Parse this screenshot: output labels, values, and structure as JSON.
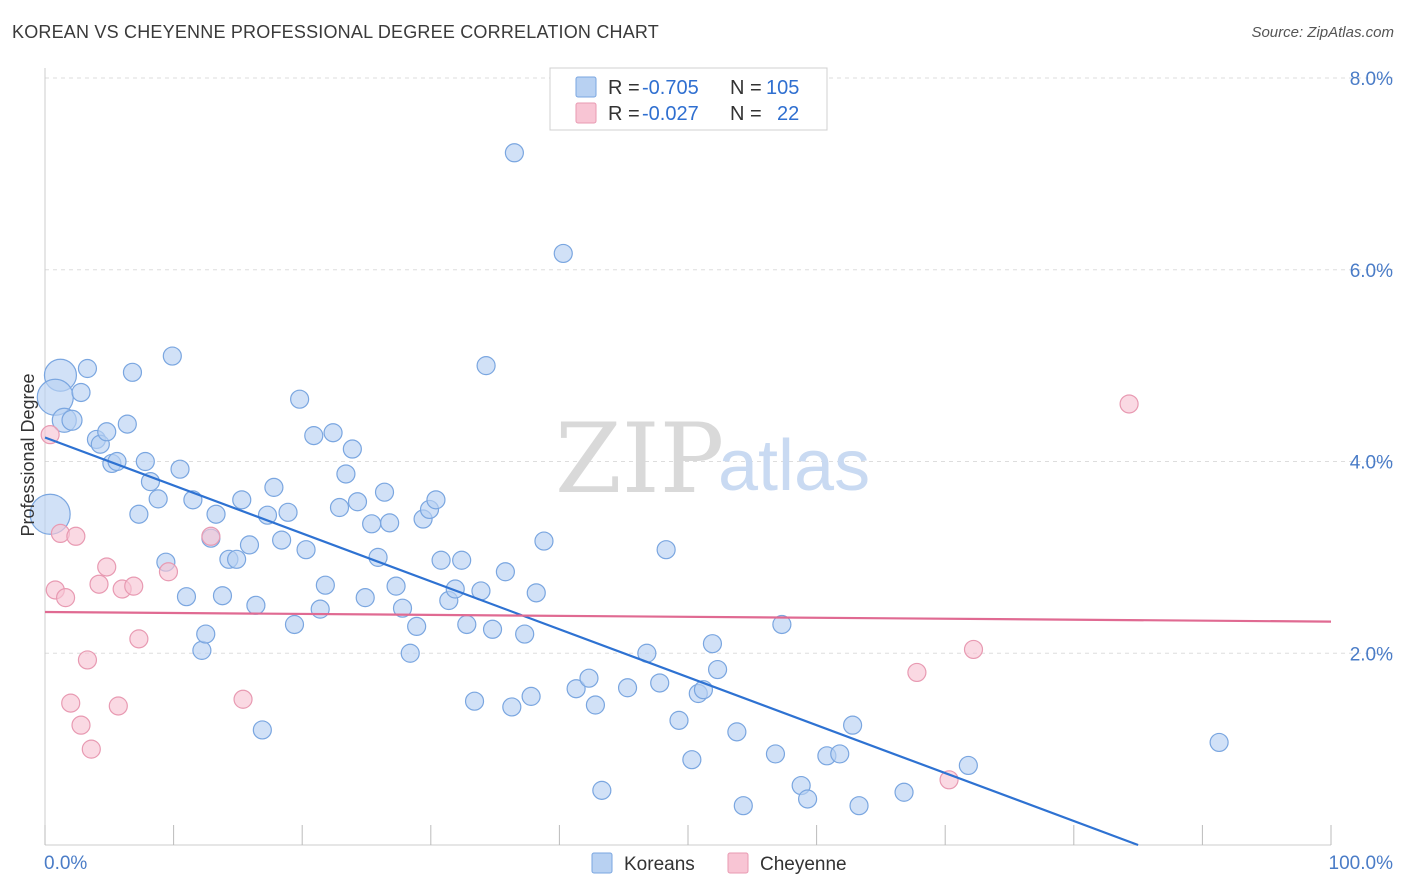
{
  "title": "KOREAN VS CHEYENNE PROFESSIONAL DEGREE CORRELATION CHART",
  "source": "Source: ZipAtlas.com",
  "watermark": {
    "zip": "ZIP",
    "atlas": "atlas"
  },
  "legend_top": [
    {
      "r_label": "R = ",
      "r_value": "-0.705",
      "n_label": "N = ",
      "n_value": "105"
    },
    {
      "r_label": "R = ",
      "r_value": "-0.027",
      "n_label": "N = ",
      "n_value": "22"
    }
  ],
  "colors": {
    "koreans_fill": "#b8d1f2",
    "koreans_stroke": "#7aa6e0",
    "koreans_line": "#2e72d2",
    "cheyenne_fill": "#f8c5d4",
    "cheyenne_stroke": "#e89ab2",
    "cheyenne_line": "#e06a92",
    "grid": "#dddddd",
    "axis_text": "#4a7cc7"
  },
  "chart_data": {
    "type": "scatter",
    "title": "KOREAN VS CHEYENNE PROFESSIONAL DEGREE CORRELATION CHART",
    "xlabel": "",
    "ylabel": "Professional Degree",
    "xlim": [
      0,
      100
    ],
    "ylim": [
      0,
      8.0
    ],
    "x_tick_labels": [
      "0.0%",
      "100.0%"
    ],
    "y_ticks": [
      2.0,
      4.0,
      6.0,
      8.0
    ],
    "y_tick_labels": [
      "2.0%",
      "4.0%",
      "6.0%",
      "8.0%"
    ],
    "grid": true,
    "legend": "top-center",
    "series": [
      {
        "name": "Koreans",
        "r": -0.705,
        "n": 105,
        "trend": {
          "x": [
            0,
            85
          ],
          "y": [
            4.25,
            0.0
          ]
        },
        "points": [
          [
            1.2,
            4.9,
            16
          ],
          [
            0.8,
            4.67,
            18
          ],
          [
            0.4,
            3.45,
            20
          ],
          [
            1.5,
            4.43,
            12
          ],
          [
            2.1,
            4.43,
            10
          ],
          [
            3.3,
            4.97,
            9
          ],
          [
            2.8,
            4.72,
            9
          ],
          [
            4.0,
            4.23,
            9
          ],
          [
            4.3,
            4.18,
            9
          ],
          [
            4.8,
            4.31,
            9
          ],
          [
            5.2,
            3.98,
            9
          ],
          [
            5.6,
            4.0,
            9
          ],
          [
            6.4,
            4.39,
            9
          ],
          [
            6.8,
            4.93,
            9
          ],
          [
            7.3,
            3.45,
            9
          ],
          [
            7.8,
            4.0,
            9
          ],
          [
            8.2,
            3.79,
            9
          ],
          [
            8.8,
            3.61,
            9
          ],
          [
            9.4,
            2.95,
            9
          ],
          [
            9.9,
            5.1,
            9
          ],
          [
            10.5,
            3.92,
            9
          ],
          [
            11.0,
            2.59,
            9
          ],
          [
            11.5,
            3.6,
            9
          ],
          [
            12.2,
            2.03,
            9
          ],
          [
            12.5,
            2.2,
            9
          ],
          [
            12.9,
            3.2,
            9
          ],
          [
            13.3,
            3.45,
            9
          ],
          [
            13.8,
            2.6,
            9
          ],
          [
            14.3,
            2.98,
            9
          ],
          [
            14.9,
            2.98,
            9
          ],
          [
            15.3,
            3.6,
            9
          ],
          [
            15.9,
            3.13,
            9
          ],
          [
            16.4,
            2.5,
            9
          ],
          [
            16.9,
            1.2,
            9
          ],
          [
            17.3,
            3.44,
            9
          ],
          [
            17.8,
            3.73,
            9
          ],
          [
            18.4,
            3.18,
            9
          ],
          [
            18.9,
            3.47,
            9
          ],
          [
            19.4,
            2.3,
            9
          ],
          [
            19.8,
            4.65,
            9
          ],
          [
            20.3,
            3.08,
            9
          ],
          [
            20.9,
            4.27,
            9
          ],
          [
            21.4,
            2.46,
            9
          ],
          [
            21.8,
            2.71,
            9
          ],
          [
            22.4,
            4.3,
            9
          ],
          [
            22.9,
            3.52,
            9
          ],
          [
            23.4,
            3.87,
            9
          ],
          [
            23.9,
            4.13,
            9
          ],
          [
            24.3,
            3.58,
            9
          ],
          [
            24.9,
            2.58,
            9
          ],
          [
            25.4,
            3.35,
            9
          ],
          [
            25.9,
            3.0,
            9
          ],
          [
            26.4,
            3.68,
            9
          ],
          [
            26.8,
            3.36,
            9
          ],
          [
            27.3,
            2.7,
            9
          ],
          [
            27.8,
            2.47,
            9
          ],
          [
            28.4,
            2.0,
            9
          ],
          [
            28.9,
            2.28,
            9
          ],
          [
            29.4,
            3.4,
            9
          ],
          [
            29.9,
            3.5,
            9
          ],
          [
            30.4,
            3.6,
            9
          ],
          [
            30.8,
            2.97,
            9
          ],
          [
            31.4,
            2.55,
            9
          ],
          [
            31.9,
            2.67,
            9
          ],
          [
            32.4,
            2.97,
            9
          ],
          [
            32.8,
            2.3,
            9
          ],
          [
            33.4,
            1.5,
            9
          ],
          [
            33.9,
            2.65,
            9
          ],
          [
            34.3,
            5.0,
            9
          ],
          [
            34.8,
            2.25,
            9
          ],
          [
            35.8,
            2.85,
            9
          ],
          [
            36.3,
            1.44,
            9
          ],
          [
            36.5,
            7.22,
            9
          ],
          [
            37.3,
            2.2,
            9
          ],
          [
            37.8,
            1.55,
            9
          ],
          [
            38.2,
            2.63,
            9
          ],
          [
            38.8,
            3.17,
            9
          ],
          [
            40.3,
            6.17,
            9
          ],
          [
            41.3,
            1.63,
            9
          ],
          [
            42.3,
            1.74,
            9
          ],
          [
            42.8,
            1.46,
            9
          ],
          [
            43.3,
            0.57,
            9
          ],
          [
            45.3,
            1.64,
            9
          ],
          [
            46.8,
            2.0,
            9
          ],
          [
            47.8,
            1.69,
            9
          ],
          [
            48.3,
            3.08,
            9
          ],
          [
            49.3,
            1.3,
            9
          ],
          [
            50.3,
            0.89,
            9
          ],
          [
            50.8,
            1.58,
            9
          ],
          [
            51.2,
            1.62,
            9
          ],
          [
            51.9,
            2.1,
            9
          ],
          [
            52.3,
            1.83,
            9
          ],
          [
            53.8,
            1.18,
            9
          ],
          [
            54.3,
            0.41,
            9
          ],
          [
            56.8,
            0.95,
            9
          ],
          [
            57.3,
            2.3,
            9
          ],
          [
            58.8,
            0.62,
            9
          ],
          [
            59.3,
            0.48,
            9
          ],
          [
            60.8,
            0.93,
            9
          ],
          [
            61.8,
            0.95,
            9
          ],
          [
            62.8,
            1.25,
            9
          ],
          [
            63.3,
            0.41,
            9
          ],
          [
            66.8,
            0.55,
            9
          ],
          [
            71.8,
            0.83,
            9
          ],
          [
            91.3,
            1.07,
            9
          ]
        ]
      },
      {
        "name": "Cheyenne",
        "r": -0.027,
        "n": 22,
        "trend": {
          "x": [
            0,
            100
          ],
          "y": [
            2.43,
            2.33
          ]
        },
        "points": [
          [
            0.4,
            4.28,
            9
          ],
          [
            0.8,
            2.66,
            9
          ],
          [
            1.2,
            3.25,
            9
          ],
          [
            1.6,
            2.58,
            9
          ],
          [
            2.0,
            1.48,
            9
          ],
          [
            2.4,
            3.22,
            9
          ],
          [
            2.8,
            1.25,
            9
          ],
          [
            3.3,
            1.93,
            9
          ],
          [
            3.6,
            1.0,
            9
          ],
          [
            4.2,
            2.72,
            9
          ],
          [
            4.8,
            2.9,
            9
          ],
          [
            5.7,
            1.45,
            9
          ],
          [
            6.0,
            2.67,
            9
          ],
          [
            6.9,
            2.7,
            9
          ],
          [
            7.3,
            2.15,
            9
          ],
          [
            9.6,
            2.85,
            9
          ],
          [
            12.9,
            3.22,
            9
          ],
          [
            15.4,
            1.52,
            9
          ],
          [
            67.8,
            1.8,
            9
          ],
          [
            72.2,
            2.04,
            9
          ],
          [
            84.3,
            4.6,
            9
          ],
          [
            70.3,
            0.68,
            9
          ]
        ]
      }
    ]
  },
  "bottom_legend": [
    {
      "label": "Koreans"
    },
    {
      "label": "Cheyenne"
    }
  ]
}
